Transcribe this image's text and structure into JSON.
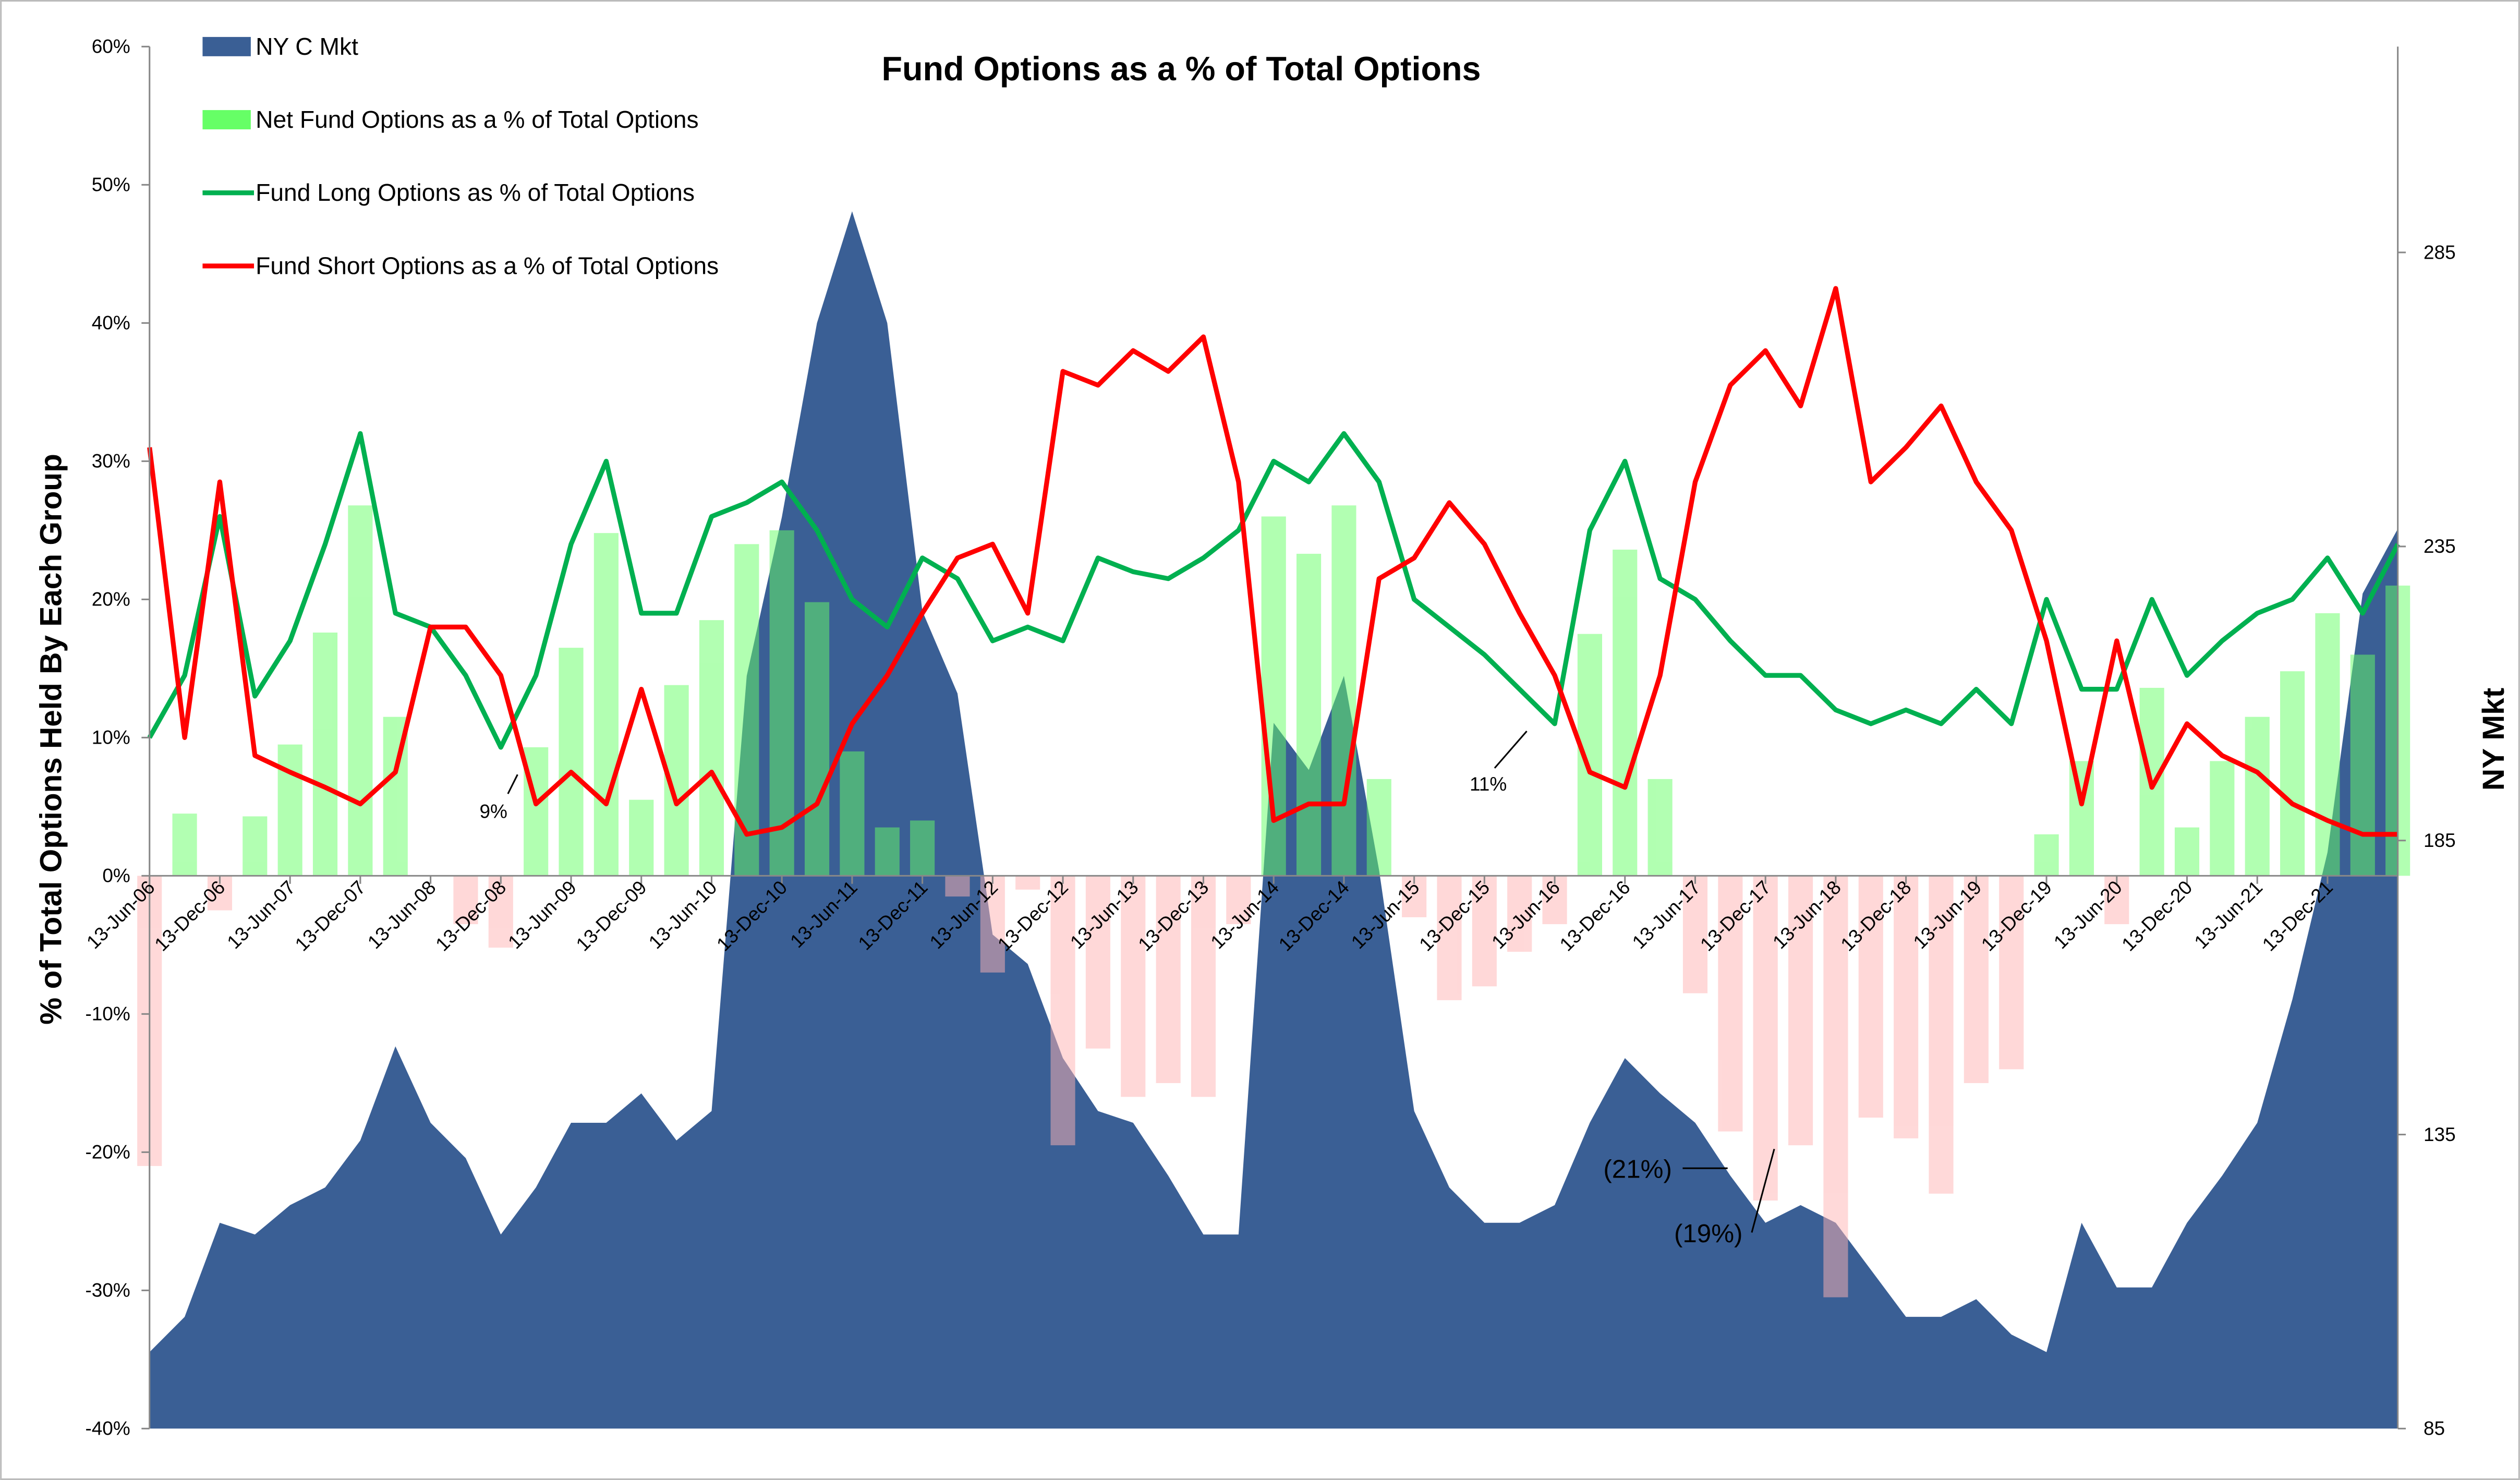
{
  "chart_data": {
    "type": "combo",
    "title": "Fund Options as a % of Total Options",
    "y_label": "% of Total Options Held By Each Group",
    "y2_label": "NY Mkt",
    "categories": [
      "13-Jun-06",
      null,
      "13-Dec-06",
      null,
      "13-Jun-07",
      null,
      "13-Dec-07",
      null,
      "13-Jun-08",
      null,
      "13-Dec-08",
      null,
      "13-Jun-09",
      null,
      "13-Dec-09",
      null,
      "13-Jun-10",
      null,
      "13-Dec-10",
      null,
      "13-Jun-11",
      null,
      "13-Dec-11",
      null,
      "13-Jun-12",
      null,
      "13-Dec-12",
      null,
      "13-Jun-13",
      null,
      "13-Dec-13",
      null,
      "13-Jun-14",
      null,
      "13-Dec-14",
      null,
      "13-Jun-15",
      null,
      "13-Dec-15",
      null,
      "13-Jun-16",
      null,
      "13-Dec-16",
      null,
      "13-Jun-17",
      null,
      "13-Dec-17",
      null,
      "13-Jun-18",
      null,
      "13-Dec-18",
      null,
      "13-Jun-19",
      null,
      "13-Dec-19",
      null,
      "13-Jun-20",
      null,
      "13-Dec-20",
      null,
      "13-Jun-21",
      null,
      "13-Dec-21",
      null,
      null
    ],
    "ylim": [
      -40,
      60
    ],
    "yticks": [
      {
        "value": -40,
        "label": "-40%"
      },
      {
        "value": -30,
        "label": "-30%"
      },
      {
        "value": -20,
        "label": "-20%"
      },
      {
        "value": -10,
        "label": "-10%"
      },
      {
        "value": 0,
        "label": "0%"
      },
      {
        "value": 10,
        "label": "10%"
      },
      {
        "value": 20,
        "label": "20%"
      },
      {
        "value": 30,
        "label": "30%"
      },
      {
        "value": 40,
        "label": "40%"
      },
      {
        "value": 50,
        "label": "50%"
      },
      {
        "value": 60,
        "label": "60%"
      }
    ],
    "y2lim": [
      85,
      320
    ],
    "y2ticks": [
      85,
      135,
      185,
      235,
      285
    ],
    "legend": "top-left",
    "series": [
      {
        "name": "NY C Mkt",
        "type": "area",
        "axis": "y2",
        "color": "#3a5f95",
        "values": [
          98,
          104,
          120,
          118,
          123,
          126,
          134,
          150,
          137,
          131,
          118,
          126,
          137,
          137,
          142,
          134,
          139,
          213,
          240,
          273,
          292,
          273,
          224,
          210,
          169,
          164,
          148,
          139,
          137,
          128,
          118,
          118,
          205,
          197,
          213,
          180,
          139,
          126,
          120,
          120,
          123,
          137,
          148,
          142,
          137,
          128,
          120,
          123,
          120,
          112,
          104,
          104,
          107,
          101,
          98,
          120,
          109,
          109,
          120,
          128,
          137,
          158,
          183,
          227,
          238
        ]
      },
      {
        "name": "Net Fund Options as a % of Total Options",
        "type": "bar",
        "color": "#66ff66",
        "negative_color": "#ffb3b3",
        "values": [
          -21,
          4.5,
          -2.5,
          4.3,
          9.5,
          17.6,
          26.8,
          11.5,
          0,
          -3.5,
          -5.2,
          9.3,
          16.5,
          24.8,
          5.5,
          13.8,
          18.5,
          24,
          25,
          19.8,
          9,
          3.5,
          4,
          -1.5,
          -7,
          -1,
          -19.5,
          -12.5,
          -16,
          -15,
          -16,
          -3.5,
          26,
          23.3,
          26.8,
          7,
          -3,
          -9,
          -8,
          -5.5,
          -3.5,
          17.5,
          23.6,
          7,
          -8.5,
          -18.5,
          -23.5,
          -19.5,
          -30.5,
          -17.5,
          -19,
          -23,
          -15,
          -14,
          3,
          8.3,
          -3.5,
          13.6,
          3.5,
          8.3,
          11.5,
          14.8,
          19,
          16,
          21
        ]
      },
      {
        "name": "Fund Long Options as % of Total Options",
        "type": "line",
        "color": "#00b050",
        "values": [
          10,
          14.5,
          26,
          13,
          17,
          24,
          32,
          19,
          18,
          14.5,
          9.3,
          14.5,
          24,
          30,
          19,
          19,
          26,
          27,
          28.5,
          25,
          20,
          18,
          23,
          21.5,
          17,
          18,
          17,
          23,
          22,
          21.5,
          23,
          25,
          30,
          28.5,
          32,
          28.5,
          20,
          18,
          16,
          13.5,
          11,
          25,
          30,
          21.5,
          20,
          17,
          14.5,
          14.5,
          12,
          11,
          12,
          11,
          13.5,
          11,
          20,
          13.5,
          13.5,
          20,
          14.5,
          17,
          19,
          20,
          23,
          19,
          24
        ]
      },
      {
        "name": "Fund Short Options as a % of Total Options",
        "type": "line",
        "color": "#ff0000",
        "values": [
          31,
          10,
          28.5,
          8.7,
          7.5,
          6.4,
          5.2,
          7.5,
          18,
          18,
          14.5,
          5.2,
          7.5,
          5.2,
          13.5,
          5.2,
          7.5,
          3,
          3.5,
          5.2,
          11,
          14.5,
          19,
          23,
          24,
          19,
          36.5,
          35.5,
          38,
          36.5,
          39,
          28.5,
          4,
          5.2,
          5.2,
          21.5,
          23,
          27,
          24,
          19,
          14.5,
          7.5,
          6.4,
          14.5,
          28.5,
          35.5,
          38,
          34,
          42.5,
          28.5,
          31,
          34,
          28.5,
          25,
          17,
          5.2,
          17,
          6.4,
          11,
          8.7,
          7.5,
          5.2,
          4,
          3,
          3
        ]
      }
    ],
    "annotations": [
      "9%",
      "11%",
      "(21%)",
      "(19%)"
    ]
  }
}
